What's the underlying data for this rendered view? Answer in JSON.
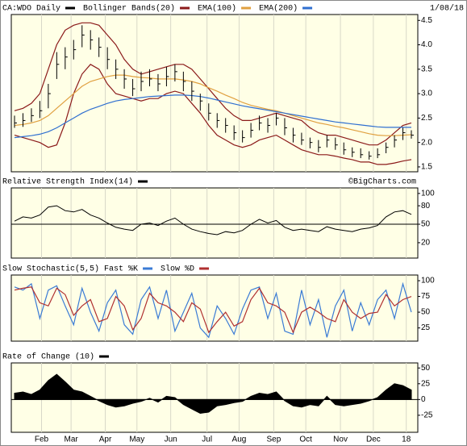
{
  "chart_data": [
    {
      "type": "ohlc",
      "title": "CA:WDO Daily",
      "date": "1/08/18",
      "color": "#000000",
      "high": [
        2.55,
        2.6,
        2.7,
        2.85,
        3.2,
        3.85,
        3.95,
        4.1,
        4.4,
        4.3,
        4.15,
        3.95,
        3.7,
        3.5,
        3.3,
        3.45,
        3.5,
        3.4,
        3.55,
        3.6,
        3.45,
        3.25,
        3.0,
        2.8,
        2.6,
        2.5,
        2.35,
        2.25,
        2.4,
        2.55,
        2.5,
        2.6,
        2.5,
        2.3,
        2.2,
        2.1,
        2.05,
        2.15,
        2.1,
        2.0,
        1.9,
        1.88,
        1.82,
        1.88,
        2.0,
        2.15,
        2.3,
        2.25
      ],
      "low": [
        2.3,
        2.32,
        2.42,
        2.5,
        2.7,
        3.3,
        3.5,
        3.7,
        3.95,
        3.9,
        3.75,
        3.5,
        3.3,
        3.1,
        2.95,
        3.05,
        3.15,
        3.05,
        3.15,
        3.25,
        3.05,
        2.85,
        2.65,
        2.45,
        2.3,
        2.2,
        2.05,
        2.0,
        2.1,
        2.25,
        2.2,
        2.35,
        2.15,
        2.0,
        1.95,
        1.88,
        1.8,
        1.9,
        1.85,
        1.75,
        1.7,
        1.68,
        1.65,
        1.68,
        1.78,
        1.9,
        2.05,
        2.08
      ],
      "close": [
        2.4,
        2.45,
        2.55,
        2.65,
        3.0,
        3.6,
        3.75,
        3.9,
        4.2,
        4.1,
        3.95,
        3.7,
        3.5,
        3.3,
        3.1,
        3.25,
        3.3,
        3.2,
        3.35,
        3.45,
        3.25,
        3.05,
        2.85,
        2.6,
        2.45,
        2.35,
        2.2,
        2.1,
        2.25,
        2.4,
        2.35,
        2.5,
        2.3,
        2.15,
        2.05,
        2.0,
        1.9,
        2.05,
        1.95,
        1.85,
        1.8,
        1.75,
        1.72,
        1.75,
        1.9,
        2.05,
        2.2,
        2.15
      ],
      "series": [
        {
          "name": "Bollinger Bands(20)",
          "color": "#8b1a1a",
          "upper": [
            2.65,
            2.7,
            2.8,
            3.0,
            3.5,
            4.0,
            4.3,
            4.4,
            4.45,
            4.45,
            4.4,
            4.2,
            4.0,
            3.7,
            3.5,
            3.4,
            3.45,
            3.5,
            3.55,
            3.6,
            3.6,
            3.5,
            3.3,
            3.1,
            2.9,
            2.7,
            2.55,
            2.45,
            2.45,
            2.5,
            2.55,
            2.6,
            2.55,
            2.5,
            2.45,
            2.3,
            2.2,
            2.15,
            2.15,
            2.1,
            2.05,
            2.0,
            1.95,
            1.95,
            2.05,
            2.2,
            2.35,
            2.4
          ],
          "lower": [
            2.15,
            2.1,
            2.05,
            2.0,
            1.9,
            1.95,
            2.4,
            3.0,
            3.4,
            3.6,
            3.5,
            3.2,
            3.0,
            2.95,
            2.9,
            2.85,
            2.9,
            2.9,
            3.0,
            3.05,
            3.0,
            2.8,
            2.6,
            2.35,
            2.15,
            2.05,
            1.95,
            1.9,
            1.95,
            2.05,
            2.1,
            2.15,
            2.05,
            1.95,
            1.85,
            1.8,
            1.75,
            1.75,
            1.72,
            1.68,
            1.65,
            1.6,
            1.6,
            1.55,
            1.55,
            1.58,
            1.62,
            1.65
          ]
        },
        {
          "name": "EMA(100)",
          "color": "#e0a040",
          "values": [
            2.35,
            2.37,
            2.4,
            2.45,
            2.55,
            2.7,
            2.85,
            3.0,
            3.15,
            3.25,
            3.3,
            3.35,
            3.38,
            3.38,
            3.35,
            3.33,
            3.32,
            3.3,
            3.3,
            3.3,
            3.28,
            3.25,
            3.2,
            3.12,
            3.05,
            2.97,
            2.9,
            2.82,
            2.76,
            2.72,
            2.68,
            2.65,
            2.6,
            2.55,
            2.5,
            2.45,
            2.4,
            2.37,
            2.33,
            2.3,
            2.26,
            2.22,
            2.18,
            2.15,
            2.14,
            2.14,
            2.15,
            2.16
          ]
        },
        {
          "name": "EMA(200)",
          "color": "#2f6fd0",
          "values": [
            2.1,
            2.12,
            2.14,
            2.17,
            2.22,
            2.3,
            2.4,
            2.5,
            2.6,
            2.68,
            2.74,
            2.8,
            2.85,
            2.88,
            2.9,
            2.92,
            2.94,
            2.95,
            2.96,
            2.97,
            2.97,
            2.96,
            2.94,
            2.91,
            2.87,
            2.83,
            2.79,
            2.75,
            2.72,
            2.69,
            2.66,
            2.63,
            2.6,
            2.57,
            2.54,
            2.51,
            2.48,
            2.45,
            2.42,
            2.4,
            2.38,
            2.36,
            2.34,
            2.32,
            2.31,
            2.31,
            2.31,
            2.31
          ]
        }
      ],
      "ylim": [
        1.4,
        4.62
      ],
      "yticks": [
        4.5,
        {
          "value": 4,
          "label": "4.0"
        },
        3.5,
        {
          "value": 3,
          "label": "3.0"
        },
        2.5,
        {
          "value": 2,
          "label": "2.0"
        },
        1.5
      ]
    },
    {
      "type": "line",
      "title": "Relative Strength Index(14)",
      "credit": "©BigCharts.com",
      "color": "#000000",
      "values": [
        55,
        62,
        60,
        65,
        78,
        80,
        72,
        70,
        74,
        65,
        60,
        52,
        45,
        42,
        40,
        50,
        52,
        48,
        55,
        60,
        50,
        42,
        38,
        35,
        33,
        38,
        36,
        40,
        50,
        58,
        52,
        56,
        45,
        40,
        42,
        40,
        38,
        46,
        42,
        40,
        38,
        42,
        44,
        48,
        62,
        70,
        72,
        66
      ],
      "reference_line": 50,
      "ylim": [
        -5,
        109
      ],
      "yticks": [
        100,
        80,
        50,
        20
      ]
    },
    {
      "type": "line",
      "title": "Slow Stochastic(5,5)",
      "series": [
        {
          "name": "Fast %K",
          "color": "#3a7bd5",
          "values": [
            90,
            85,
            95,
            40,
            85,
            92,
            60,
            30,
            88,
            50,
            20,
            65,
            85,
            30,
            15,
            70,
            90,
            40,
            85,
            20,
            50,
            80,
            25,
            10,
            60,
            40,
            15,
            55,
            85,
            90,
            40,
            80,
            20,
            15,
            85,
            30,
            70,
            10,
            60,
            85,
            20,
            65,
            30,
            70,
            85,
            40,
            95,
            50
          ]
        },
        {
          "name": "Slow %D",
          "color": "#b03030",
          "values": [
            85,
            88,
            90,
            65,
            60,
            88,
            78,
            45,
            60,
            70,
            35,
            40,
            75,
            60,
            22,
            40,
            80,
            65,
            60,
            50,
            35,
            65,
            55,
            18,
            35,
            50,
            28,
            35,
            70,
            88,
            65,
            60,
            50,
            18,
            50,
            58,
            50,
            40,
            35,
            70,
            50,
            40,
            48,
            50,
            78,
            60,
            70,
            75
          ]
        }
      ],
      "ylim": [
        4,
        109
      ],
      "yticks": [
        100,
        75,
        50,
        25
      ]
    },
    {
      "type": "area",
      "title": "Rate of Change (10)",
      "color": "#000000",
      "values": [
        10,
        12,
        8,
        15,
        30,
        40,
        28,
        15,
        12,
        5,
        -2,
        -8,
        -12,
        -10,
        -6,
        -3,
        2,
        -4,
        5,
        3,
        -8,
        -15,
        -22,
        -20,
        -10,
        -8,
        -5,
        -3,
        5,
        10,
        8,
        12,
        -2,
        -10,
        -12,
        -8,
        -10,
        5,
        -8,
        -10,
        -8,
        -6,
        -2,
        3,
        15,
        25,
        22,
        15
      ],
      "ylim": [
        -52,
        58
      ],
      "yticks": [
        50,
        25,
        0,
        -25
      ],
      "xlim": [
        0,
        47
      ],
      "xticks": [
        {
          "value": 3.2,
          "label": "Feb"
        },
        {
          "value": 6.7,
          "label": "Mar"
        },
        {
          "value": 10.75,
          "label": "Apr"
        },
        {
          "value": 14.5,
          "label": "May"
        },
        {
          "value": 18.5,
          "label": "Jun"
        },
        {
          "value": 22.8,
          "label": "Jul"
        },
        {
          "value": 26.6,
          "label": "Aug"
        },
        {
          "value": 30.7,
          "label": "Sep"
        },
        {
          "value": 34.5,
          "label": "Oct"
        },
        {
          "value": 38.6,
          "label": "Nov"
        },
        {
          "value": 42.5,
          "label": "Dec"
        },
        {
          "value": 46.4,
          "label": "18"
        }
      ],
      "grid": true
    }
  ]
}
